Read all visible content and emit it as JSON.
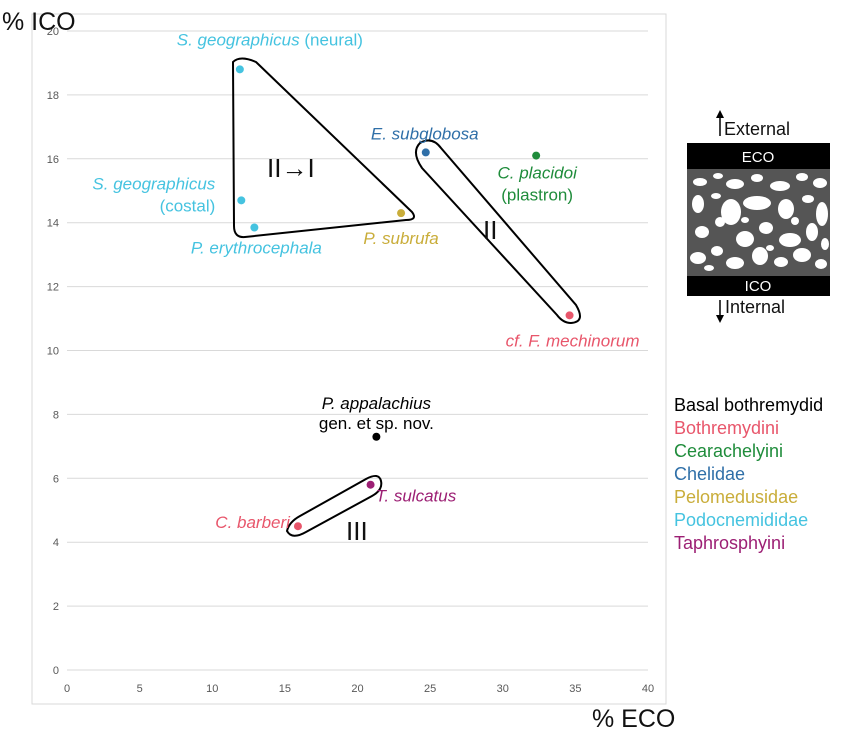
{
  "chart_data": {
    "type": "scatter",
    "xlabel": "% ECO",
    "ylabel": "% ICO",
    "xlim": [
      0,
      40
    ],
    "ylim": [
      0,
      20
    ],
    "xticks": [
      0,
      5,
      10,
      15,
      20,
      25,
      30,
      35,
      40
    ],
    "yticks": [
      0,
      2,
      4,
      6,
      8,
      10,
      12,
      14,
      16,
      18,
      20
    ],
    "grid": "horizontal",
    "colors": {
      "Basal bothremydid": "#000000",
      "Bothremydini": "#e8566b",
      "Cearachelyini": "#1f8c3b",
      "Chelidae": "#2f6fa8",
      "Pelomedusidae": "#c9ad3a",
      "Podocnemididae": "#45c3e0",
      "Taphrosphyini": "#9c1f74"
    },
    "points": [
      {
        "label": "S. geographicus",
        "suffix": " (neural)",
        "group": "Podocnemididae",
        "x": 11.9,
        "y": 18.8
      },
      {
        "label": "S. geographicus",
        "suffix": "(costal)",
        "group": "Podocnemididae",
        "x": 12.0,
        "y": 14.7
      },
      {
        "label": "P. erythrocephala",
        "suffix": "",
        "group": "Podocnemididae",
        "x": 12.9,
        "y": 13.85
      },
      {
        "label": "P. subrufa",
        "suffix": "",
        "group": "Pelomedusidae",
        "x": 23.0,
        "y": 14.3
      },
      {
        "label": "E. subglobosa",
        "suffix": "",
        "group": "Chelidae",
        "x": 24.7,
        "y": 16.2
      },
      {
        "label": "C. placidoi",
        "suffix": "(plastron)",
        "group": "Cearachelyini",
        "x": 32.3,
        "y": 16.1
      },
      {
        "label": "cf. F. mechinorum",
        "suffix": "",
        "group": "Bothremydini",
        "x": 34.6,
        "y": 11.1
      },
      {
        "label": "P. appalachius",
        "suffix": "gen. et sp. nov.",
        "group": "Basal bothremydid",
        "x": 21.3,
        "y": 7.3
      },
      {
        "label": "T. sulcatus",
        "suffix": "",
        "group": "Taphrosphyini",
        "x": 20.9,
        "y": 5.8
      },
      {
        "label": "C. barberi",
        "suffix": "",
        "group": "Bothremydini",
        "x": 15.9,
        "y": 4.5
      }
    ],
    "group_labels": [
      "II→I",
      "II",
      "III"
    ],
    "legend": [
      "Basal bothremydid",
      "Bothremydini",
      "Cearachelyini",
      "Chelidae",
      "Pelomedusidae",
      "Podocnemididae",
      "Taphrosphyini"
    ],
    "inset": {
      "top_label": "ECO",
      "bottom_label": "ICO",
      "external": "External",
      "internal": "Internal"
    }
  }
}
